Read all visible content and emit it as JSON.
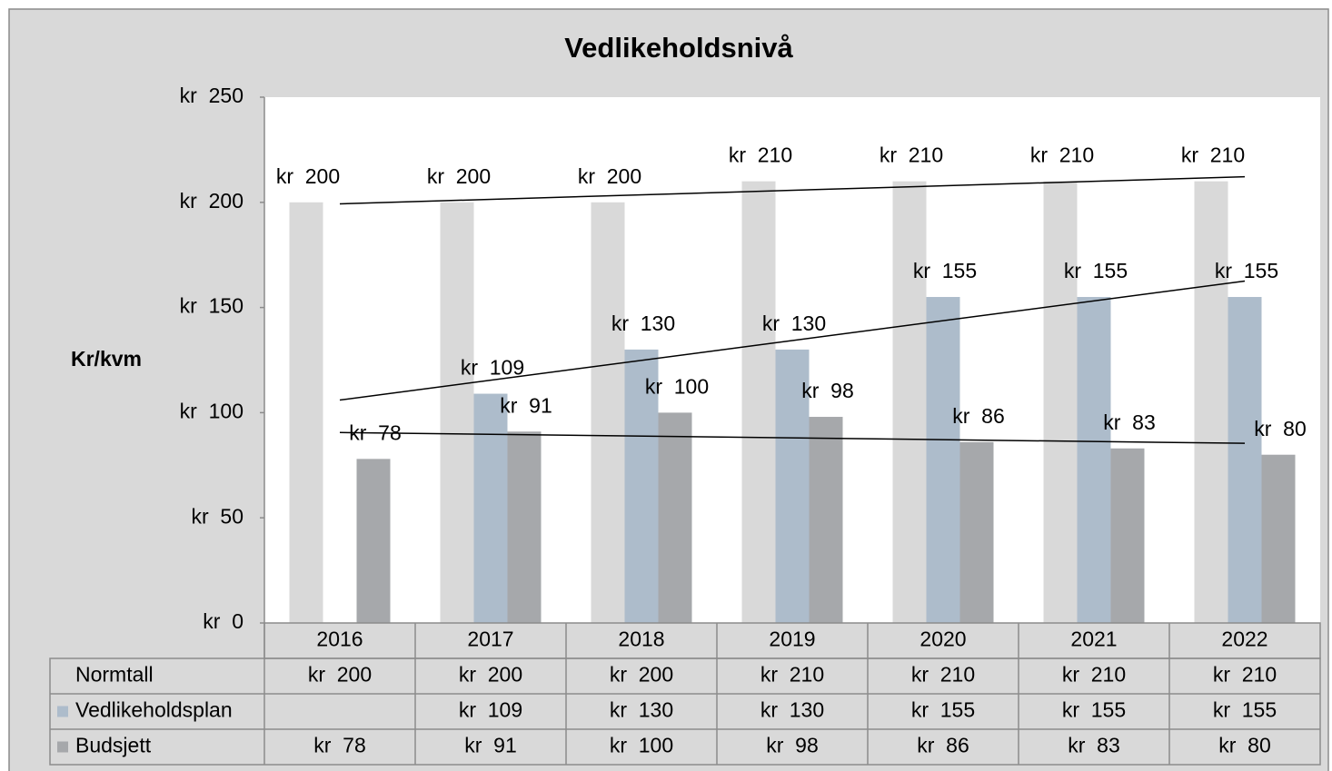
{
  "chart_data": {
    "type": "bar",
    "title": "Vedlikeholdsnivå",
    "y_label": "Kr/kvm",
    "categories": [
      "2016",
      "2017",
      "2018",
      "2019",
      "2020",
      "2021",
      "2022"
    ],
    "series": [
      {
        "name": "Normtall",
        "color": "#d9d9d9",
        "values": [
          200,
          200,
          200,
          210,
          210,
          210,
          210
        ],
        "value_labels": [
          "kr  200",
          "kr  200",
          "kr  200",
          "kr  210",
          "kr  210",
          "kr  210",
          "kr  210"
        ]
      },
      {
        "name": "Vedlikeholdsplan",
        "color": "#adbccb",
        "values": [
          null,
          109,
          130,
          130,
          155,
          155,
          155
        ],
        "value_labels": [
          null,
          "kr  109",
          "kr  130",
          "kr  130",
          "kr  155",
          "kr  155",
          "kr  155"
        ]
      },
      {
        "name": "Budsjett",
        "color": "#a6a8ab",
        "values": [
          78,
          91,
          100,
          98,
          86,
          83,
          80
        ],
        "value_labels": [
          "kr  78",
          "kr  91",
          "kr  100",
          "kr  98",
          "kr  86",
          "kr  83",
          "kr  80"
        ]
      }
    ],
    "ylim": [
      0,
      250
    ],
    "yticks": [
      {
        "value": 0,
        "label": "kr  0"
      },
      {
        "value": 50,
        "label": "kr  50"
      },
      {
        "value": 100,
        "label": "kr  100"
      },
      {
        "value": 150,
        "label": "kr  150"
      },
      {
        "value": 200,
        "label": "kr  200"
      },
      {
        "value": 250,
        "label": "kr  250"
      }
    ],
    "trendlines": true,
    "data_table": true
  }
}
